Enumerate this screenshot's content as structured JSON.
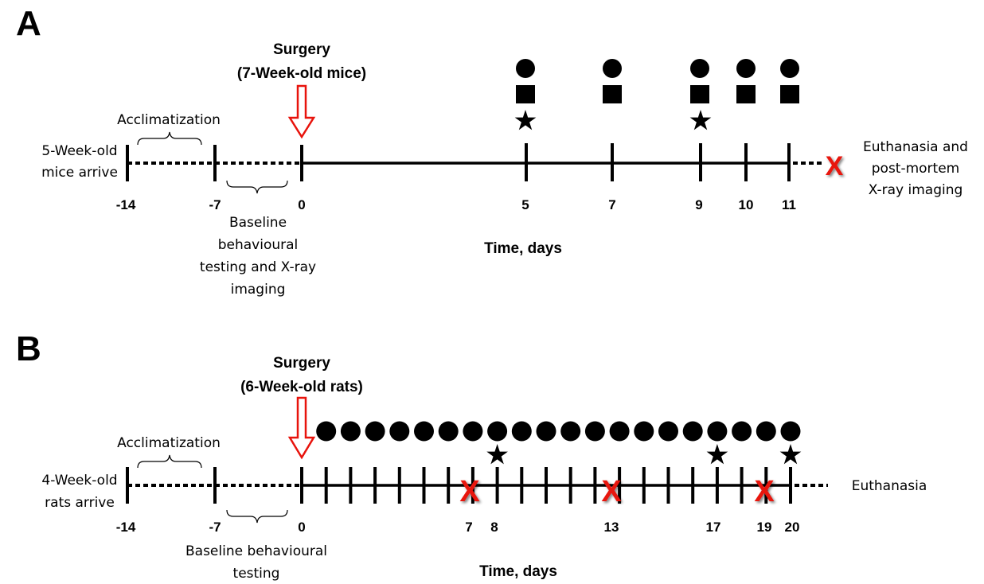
{
  "panels": [
    {
      "letter": "A",
      "surgery_title": "Surgery",
      "surgery_subtitle": "(7-Week-old mice)",
      "arrive_line1": "5-Week-old",
      "arrive_line2": "mice arrive",
      "acclimatization": "Acclimatization",
      "baseline_lines": [
        "Baseline",
        "behavioural",
        "testing and X-ray",
        "imaging"
      ],
      "axis_label": "Time, days",
      "tick_labels": [
        "-14",
        "-7",
        "0",
        "5",
        "7",
        "9",
        "10",
        "11"
      ],
      "end_lines": [
        "Euthanasia and",
        "post-mortem",
        "X-ray imaging"
      ],
      "symbols": {
        "circle_days": [
          5,
          7,
          9,
          10,
          11
        ],
        "square_days": [
          5,
          7,
          9,
          10,
          11
        ],
        "star_days": [
          5,
          9
        ]
      },
      "euthanasia_marker": "X"
    },
    {
      "letter": "B",
      "surgery_title": "Surgery",
      "surgery_subtitle": "(6-Week-old rats)",
      "arrive_line1": "4-Week-old",
      "arrive_line2": "rats arrive",
      "acclimatization": "Acclimatization",
      "baseline_lines": [
        "Baseline behavioural",
        "testing"
      ],
      "axis_label": "Time, days",
      "tick_labels": [
        "-14",
        "-7",
        "0",
        "7",
        "8",
        "13",
        "17",
        "19",
        "20"
      ],
      "end_lines": [
        "Euthanasia"
      ],
      "symbols": {
        "circle_days": [
          1,
          2,
          3,
          4,
          5,
          6,
          7,
          8,
          9,
          10,
          11,
          12,
          13,
          14,
          15,
          16,
          17,
          18,
          19,
          20
        ],
        "star_days": [
          8,
          17,
          20
        ],
        "x_days": [
          7,
          13,
          19
        ]
      },
      "marker_x": "X"
    }
  ],
  "colors": {
    "line": "#000000",
    "surgery_arrow": "#e8130c",
    "x_marker": "#e8130c"
  }
}
